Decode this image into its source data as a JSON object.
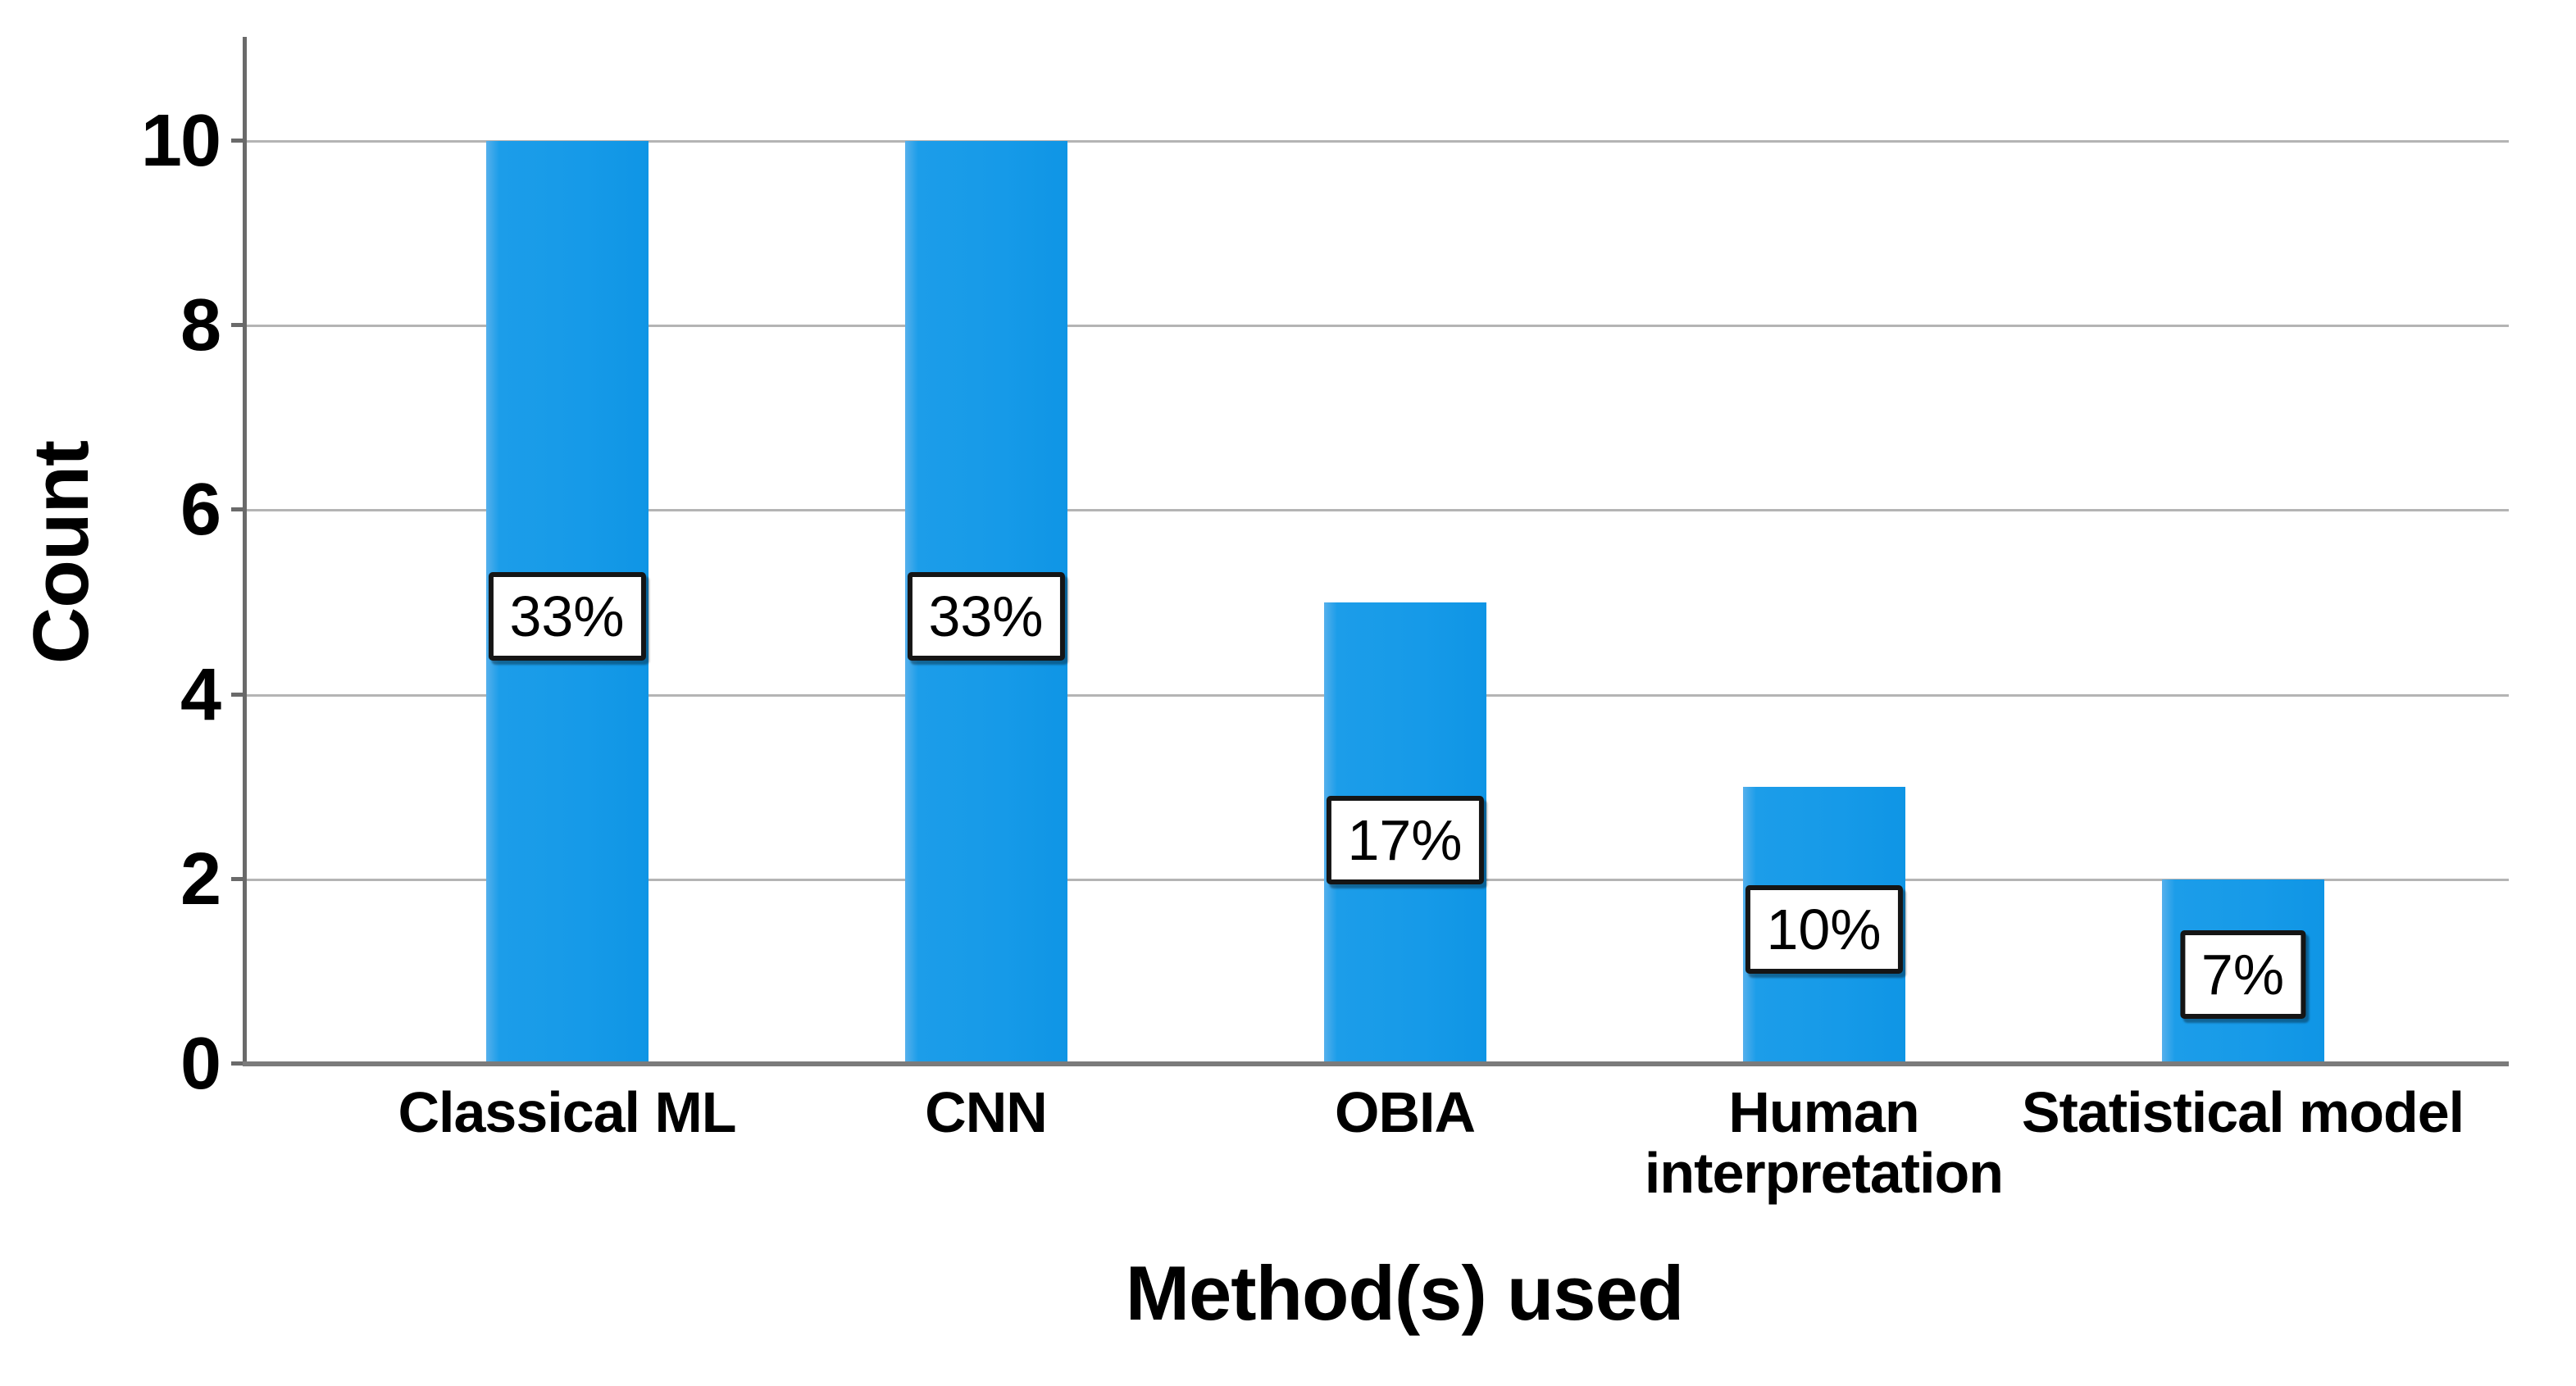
{
  "chart_data": {
    "type": "bar",
    "title": "",
    "xlabel": "Method(s) used",
    "ylabel": "Count",
    "categories": [
      "Classical ML",
      "CNN",
      "OBIA",
      "Human interpretation",
      "Statistical model"
    ],
    "values": [
      10,
      10,
      5,
      3,
      2
    ],
    "bar_labels": [
      "33%",
      "33%",
      "17%",
      "10%",
      "7%"
    ],
    "yticks": [
      0,
      2,
      4,
      6,
      8,
      10
    ],
    "ylim": [
      0,
      11.1
    ],
    "grid": "horizontal-light-gray",
    "legend": "none",
    "style": {
      "bar_fill": "#169AE8",
      "bar_highlight": "#55B0EC",
      "gridline_color": "#B4B4B4",
      "axis_spine_color": "#6A6A6A",
      "baseline_color": "#7B7B7B",
      "text_color": "#000000",
      "label_box_bg": "#FFFFFF",
      "label_box_border": "#151515",
      "background": "#FFFFFF"
    }
  }
}
